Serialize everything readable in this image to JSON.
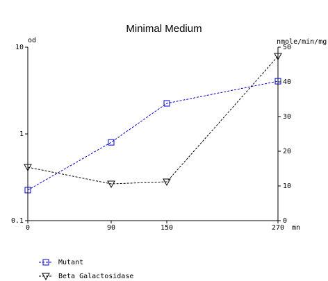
{
  "chart_data": {
    "type": "line",
    "title": "Minimal Medium",
    "y_label": "od",
    "y2_label": "nmole/min/mg",
    "x_label": "mn",
    "x": [
      0,
      90,
      150,
      270
    ],
    "xlim": [
      0,
      270
    ],
    "xticks": [
      0,
      90,
      150,
      270
    ],
    "ylim": [
      0.1,
      10
    ],
    "yticks": [
      0.1,
      1,
      10
    ],
    "y_log": true,
    "y2lim": [
      0,
      50
    ],
    "y2ticks": [
      0,
      10,
      20,
      30,
      40,
      50
    ],
    "legend": "bottom-left",
    "series": [
      {
        "name": "Mutant",
        "color": "#0000cc",
        "marker": "square",
        "values": [
          0.225,
          0.8,
          2.25,
          4.05
        ]
      },
      {
        "name": "Beta Galactosidase",
        "color": "#000000",
        "marker": "triangle",
        "axis": "y2",
        "values": [
          15.4,
          10.6,
          11.2,
          47.4
        ]
      }
    ]
  }
}
